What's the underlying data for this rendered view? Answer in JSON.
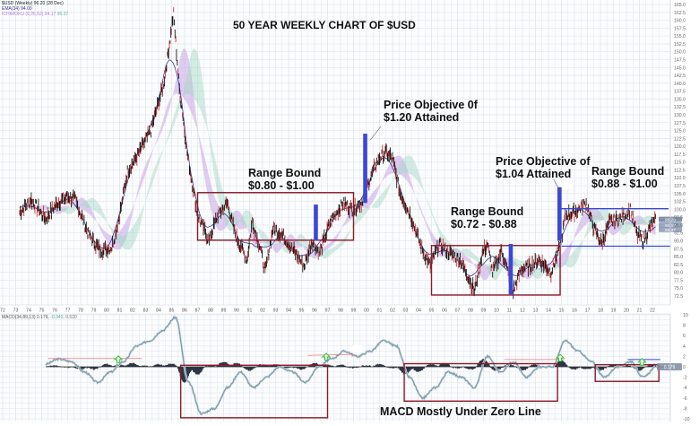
{
  "chart_data": [
    {
      "type": "line",
      "title": "50 YEAR WEEKLY CHART OF $USD",
      "subtitle": "$USD (Weekly) 96.20 (28 Dec)",
      "xlabel": "",
      "ylabel": "",
      "x_tick_labels": [
        "72",
        "73",
        "74",
        "75",
        "76",
        "77",
        "78",
        "79",
        "80",
        "81",
        "82",
        "83",
        "84",
        "85",
        "86",
        "87",
        "88",
        "89",
        "90",
        "91",
        "92",
        "93",
        "94",
        "95",
        "96",
        "97",
        "98",
        "99",
        "00",
        "01",
        "02",
        "03",
        "04",
        "05",
        "06",
        "07",
        "08",
        "09",
        "10",
        "11",
        "12",
        "13",
        "14",
        "15",
        "16",
        "17",
        "18",
        "19",
        "20",
        "21",
        "22"
      ],
      "y_tick_labels": [
        "165.0",
        "162.5",
        "160.0",
        "157.5",
        "155.0",
        "152.5",
        "150.0",
        "147.5",
        "145.0",
        "142.5",
        "140.0",
        "137.5",
        "135.0",
        "132.5",
        "130.0",
        "127.5",
        "125.0",
        "122.5",
        "120.0",
        "117.5",
        "115.0",
        "112.5",
        "110.0",
        "107.5",
        "105.0",
        "102.5",
        "100.0",
        "97.5",
        "95.0",
        "92.5",
        "90.0",
        "87.5",
        "85.0",
        "82.5",
        "80.0",
        "77.5",
        "75.0",
        "72.5"
      ],
      "ylim": [
        72.5,
        165
      ],
      "grid": true,
      "legend": [
        {
          "name": "$USD (Weekly) 96.20 (28 Dec)",
          "color": "#222222"
        },
        {
          "name": "EMA(34) 94.00",
          "color": "#3a3a8c"
        },
        {
          "name": "ICHIMOKU (9,26,52) 94.17 95.37",
          "color": "#b07cd8"
        }
      ],
      "series": [
        {
          "name": "$USD Weekly (approx)",
          "x": [
            1973,
            1974,
            1975,
            1976,
            1977,
            1978,
            1979,
            1980,
            1981,
            1982,
            1983,
            1984,
            1985,
            1986,
            1987,
            1988,
            1989,
            1990,
            1991,
            1992,
            1993,
            1994,
            1995,
            1996,
            1997,
            1998,
            1999,
            2000,
            2001,
            2002,
            2003,
            2004,
            2005,
            2006,
            2007,
            2008,
            2009,
            2010,
            2011,
            2012,
            2013,
            2014,
            2015,
            2016,
            2017,
            2018,
            2019,
            2020,
            2021,
            2022
          ],
          "values": [
            99,
            102,
            100,
            105,
            105,
            95,
            86,
            88,
            103,
            118,
            125,
            140,
            160,
            118,
            95,
            92,
            98,
            88,
            90,
            82,
            92,
            90,
            84,
            87,
            98,
            100,
            104,
            112,
            118,
            116,
            102,
            88,
            84,
            88,
            80,
            73,
            84,
            80,
            74,
            80,
            80,
            84,
            98,
            100,
            98,
            92,
            98,
            96,
            90,
            96
          ]
        }
      ],
      "annotations": [
        {
          "text": "Range Bound $0.80 - $1.00",
          "box": {
            "x_from": "1987",
            "x_to": "1999",
            "y_from": 90,
            "y_to": 105
          }
        },
        {
          "text": "Price Objective 0f $1.20 Attained",
          "marker": "blue-bar",
          "x": "2000"
        },
        {
          "text": "Range Bound $0.72 - $0.88",
          "box": {
            "x_from": "2005",
            "x_to": "2015",
            "y_from": 72,
            "y_to": 89
          }
        },
        {
          "text": "Price Objective of $1.04 Attained",
          "marker": "blue-bar",
          "x": "2015"
        },
        {
          "text": "Range Bound $0.88 - $1.00",
          "channel": {
            "x_from": "2015",
            "x_to": "2022",
            "y_from": 88,
            "y_to": 100
          }
        }
      ],
      "price_labels": [
        "96.20",
        "94.17",
        "93.37"
      ]
    },
    {
      "type": "line",
      "title": "MACD(34,89,13) 0.179, -0.341, 0.520",
      "ylim": [
        -10,
        10
      ],
      "y_tick_labels": [
        "10",
        "8",
        "6",
        "4",
        "2",
        "0",
        "-2",
        "-4",
        "-6",
        "-8",
        "-10"
      ],
      "series": [
        {
          "name": "MACD",
          "x": [
            1975,
            1976,
            1977,
            1978,
            1979,
            1980,
            1981,
            1982,
            1983,
            1984,
            1985,
            1986,
            1987,
            1988,
            1989,
            1990,
            1991,
            1992,
            1993,
            1994,
            1995,
            1996,
            1997,
            1998,
            1999,
            2000,
            2001,
            2002,
            2003,
            2004,
            2005,
            2006,
            2007,
            2008,
            2009,
            2010,
            2011,
            2012,
            2013,
            2014,
            2015,
            2016,
            2017,
            2018,
            2019,
            2020,
            2021,
            2022
          ],
          "values": [
            0.5,
            1.5,
            1,
            -1,
            -3,
            -1,
            1,
            4,
            5,
            7,
            9.5,
            -3,
            -9,
            -8,
            -4,
            -1,
            -4,
            -2,
            0,
            -1,
            -3,
            0,
            1.5,
            3,
            2,
            3,
            5,
            4,
            -2,
            -6,
            -4,
            -1,
            -2,
            -4,
            2,
            -1,
            1,
            -2,
            0,
            0,
            5,
            3,
            1,
            -2,
            0,
            1,
            -2,
            0
          ]
        }
      ],
      "annotations": [
        {
          "text": "MACD Mostly Under Zero Line"
        }
      ]
    }
  ],
  "legend": {
    "line1": "$USD (Weekly) 96.20 (28 Dec)",
    "line2": "EMA(34) 94.00",
    "line3a": "ICHIMOKU (9,26,52) 94.17",
    "line3b": "95.37",
    "macd_a": "MACD(34,89,13) 0.179,",
    "macd_b": "-0.341,",
    "macd_c": "0.520"
  },
  "annotations": {
    "title": "50 YEAR WEEKLY CHART OF $USD",
    "range1_a": "Range Bound",
    "range1_b": "$0.80 - $1.00",
    "obj1_a": "Price Objective 0f",
    "obj1_b": "$1.20 Attained",
    "range2_a": "Range Bound",
    "range2_b": "$0.72 - $0.88",
    "obj2_a": "Price Objective of",
    "obj2_b": "$1.04 Attained",
    "range3_a": "Range Bound",
    "range3_b": "$0.88 - $1.00",
    "macd_note": "MACD Mostly Under Zero Line"
  },
  "axis": {
    "years": [
      "72",
      "73",
      "74",
      "75",
      "76",
      "77",
      "78",
      "79",
      "80",
      "81",
      "82",
      "83",
      "84",
      "85",
      "86",
      "87",
      "88",
      "89",
      "90",
      "91",
      "92",
      "93",
      "94",
      "95",
      "96",
      "97",
      "98",
      "99",
      "00",
      "01",
      "02",
      "03",
      "04",
      "05",
      "06",
      "07",
      "08",
      "09",
      "10",
      "11",
      "12",
      "13",
      "14",
      "15",
      "16",
      "17",
      "18",
      "19",
      "20",
      "21",
      "22"
    ],
    "price": [
      "165.0",
      "162.5",
      "160.0",
      "157.5",
      "155.0",
      "152.5",
      "150.0",
      "147.5",
      "145.0",
      "142.5",
      "140.0",
      "137.5",
      "135.0",
      "132.5",
      "130.0",
      "127.5",
      "125.0",
      "122.5",
      "120.0",
      "117.5",
      "115.0",
      "112.5",
      "110.0",
      "107.5",
      "105.0",
      "102.5",
      "100.0",
      "97.5",
      "95.0",
      "92.5",
      "90.0",
      "87.5",
      "85.0",
      "82.5",
      "80.0",
      "77.5",
      "75.0",
      "72.5"
    ],
    "macd": [
      "10",
      "8",
      "6",
      "4",
      "2",
      "0",
      "-2",
      "-4",
      "-6",
      "-8",
      "-10"
    ],
    "price_tags": [
      "96.20",
      "94.17",
      "93.37"
    ],
    "macd_tag": "0.179"
  },
  "colors": {
    "grid": "#e3e6ea",
    "background": "#ffffff",
    "box": "#8b1a2b",
    "objective_bar": "#3b47d6",
    "channel": "#3b47d6",
    "macd_line": "#7a99a8",
    "histogram": "#2c3445",
    "up_arrow": "#39c63a",
    "resistance": "#e47d7d",
    "cloud_a": "#c9a6e8",
    "cloud_b": "#9fd6c3",
    "ema": "#3a3a8c"
  }
}
